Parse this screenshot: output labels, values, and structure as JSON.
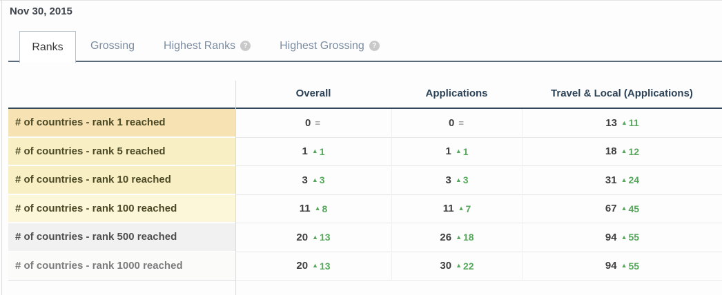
{
  "date": "Nov 30, 2015",
  "tabs": [
    {
      "label": "Ranks",
      "active": true
    },
    {
      "label": "Grossing",
      "active": false
    },
    {
      "label": "Highest Ranks",
      "active": false,
      "help_icon": "?"
    },
    {
      "label": "Highest Grossing",
      "active": false,
      "help_icon": "?"
    }
  ],
  "table": {
    "columns": [
      "Overall",
      "Applications",
      "Travel & Local (Applications)"
    ],
    "rows": [
      {
        "label": "# of countries - rank 1 reached",
        "bg": "#f7e2b3",
        "fg": "#4c4a26",
        "cells": [
          {
            "value": "0",
            "arrow": "=",
            "change": "",
            "trend": "flat"
          },
          {
            "value": "0",
            "arrow": "=",
            "change": "",
            "trend": "flat"
          },
          {
            "value": "13",
            "arrow": "▲",
            "change": "11",
            "trend": "up"
          }
        ]
      },
      {
        "label": "# of countries - rank 5 reached",
        "bg": "#f9efc4",
        "fg": "#4c4a26",
        "cells": [
          {
            "value": "1",
            "arrow": "▲",
            "change": "1",
            "trend": "up"
          },
          {
            "value": "1",
            "arrow": "▲",
            "change": "1",
            "trend": "up"
          },
          {
            "value": "18",
            "arrow": "▲",
            "change": "12",
            "trend": "up"
          }
        ]
      },
      {
        "label": "# of countries - rank 10 reached",
        "bg": "#f9efc4",
        "fg": "#4c4a26",
        "cells": [
          {
            "value": "3",
            "arrow": "▲",
            "change": "3",
            "trend": "up"
          },
          {
            "value": "3",
            "arrow": "▲",
            "change": "3",
            "trend": "up"
          },
          {
            "value": "31",
            "arrow": "▲",
            "change": "24",
            "trend": "up"
          }
        ]
      },
      {
        "label": "# of countries - rank 100 reached",
        "bg": "#fbf7d8",
        "fg": "#4c4a26",
        "cells": [
          {
            "value": "11",
            "arrow": "▲",
            "change": "8",
            "trend": "up"
          },
          {
            "value": "11",
            "arrow": "▲",
            "change": "7",
            "trend": "up"
          },
          {
            "value": "67",
            "arrow": "▲",
            "change": "45",
            "trend": "up"
          }
        ]
      },
      {
        "label": "# of countries - rank 500 reached",
        "bg": "#f1f1f1",
        "fg": "#4f4f4f",
        "cells": [
          {
            "value": "20",
            "arrow": "▲",
            "change": "13",
            "trend": "up"
          },
          {
            "value": "26",
            "arrow": "▲",
            "change": "18",
            "trend": "up"
          },
          {
            "value": "94",
            "arrow": "▲",
            "change": "55",
            "trend": "up"
          }
        ]
      },
      {
        "label": "# of countries - rank 1000 reached",
        "bg": "#fbfbfa",
        "fg": "#7c7c7c",
        "cells": [
          {
            "value": "20",
            "arrow": "▲",
            "change": "13",
            "trend": "up"
          },
          {
            "value": "30",
            "arrow": "▲",
            "change": "22",
            "trend": "up"
          },
          {
            "value": "94",
            "arrow": "▲",
            "change": "55",
            "trend": "up"
          }
        ]
      }
    ]
  },
  "colors": {
    "accent-green": "#56a75c",
    "header-navy": "#2c4257",
    "tab-inactive": "#7b8ca1",
    "tab-underline": "#5a6a7a",
    "table-topline": "#33475c",
    "flat-gray": "#9b9b9b"
  }
}
